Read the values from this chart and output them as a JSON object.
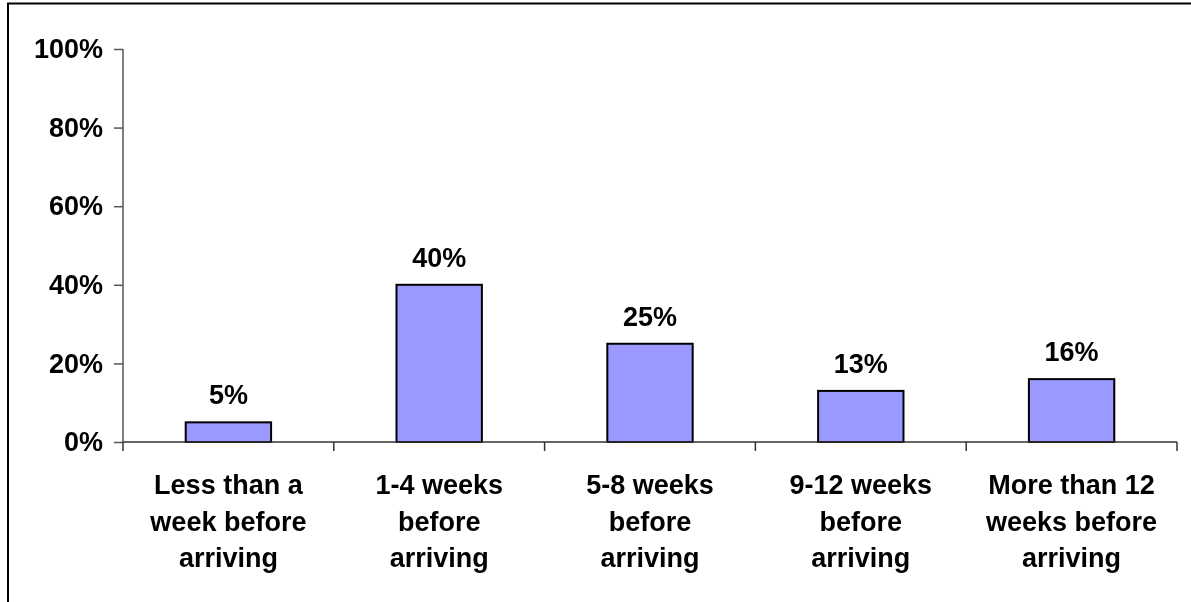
{
  "chart_data": {
    "type": "bar",
    "categories": [
      "Less than a week before arriving",
      "1-4 weeks before arriving",
      "5-8 weeks before arriving",
      "9-12 weeks before arriving",
      "More than 12 weeks before arriving"
    ],
    "values": [
      5,
      40,
      25,
      13,
      16
    ],
    "value_labels": [
      "5%",
      "40%",
      "25%",
      "13%",
      "16%"
    ],
    "color": "#9999ff",
    "ylim": [
      0,
      100
    ],
    "yticks": [
      {
        "value": 0,
        "label": "0%"
      },
      {
        "value": 20,
        "label": "20%"
      },
      {
        "value": 40,
        "label": "40%"
      },
      {
        "value": 60,
        "label": "60%"
      },
      {
        "value": 80,
        "label": "80%"
      },
      {
        "value": 100,
        "label": "100%"
      }
    ]
  }
}
